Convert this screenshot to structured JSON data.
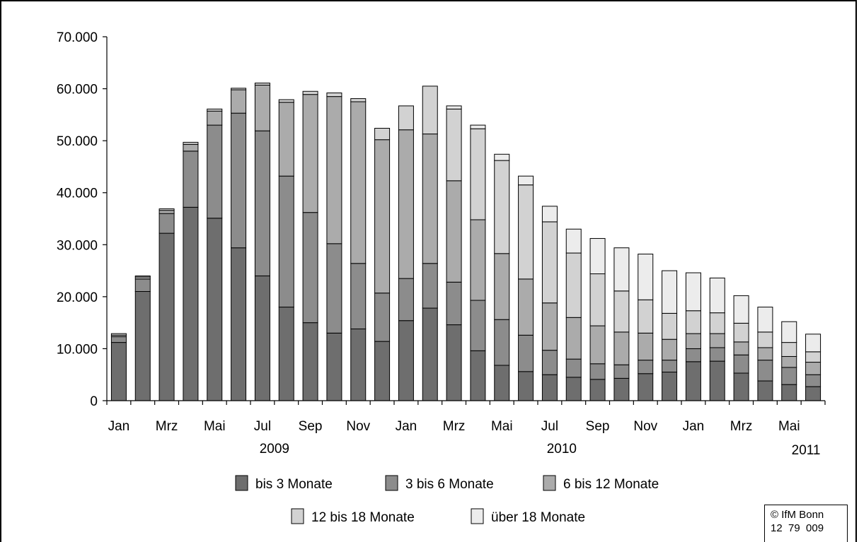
{
  "chart_data": {
    "type": "bar",
    "stacked": true,
    "x": [
      "Jan 2009",
      "Feb 2009",
      "Mrz 2009",
      "Apr 2009",
      "Mai 2009",
      "Jun 2009",
      "Jul 2009",
      "Aug 2009",
      "Sep 2009",
      "Okt 2009",
      "Nov 2009",
      "Dez 2009",
      "Jan 2010",
      "Feb 2010",
      "Mrz 2010",
      "Apr 2010",
      "Mai 2010",
      "Jun 2010",
      "Jul 2010",
      "Aug 2010",
      "Sep 2010",
      "Okt 2010",
      "Nov 2010",
      "Dez 2010",
      "Jan 2011",
      "Feb 2011",
      "Mrz 2011",
      "Apr 2011",
      "Mai 2011",
      "Jun 2011"
    ],
    "x_tick_labels": [
      "Jan",
      "",
      "Mrz",
      "",
      "Mai",
      "",
      "Jul",
      "",
      "Sep",
      "",
      "Nov",
      "",
      "Jan",
      "",
      "Mrz",
      "",
      "Mai",
      "",
      "Jul",
      "",
      "Sep",
      "",
      "Nov",
      "",
      "Jan",
      "",
      "Mrz",
      "",
      "Mai",
      ""
    ],
    "year_labels": [
      {
        "text": "2009",
        "index": 6.5
      },
      {
        "text": "2010",
        "index": 18.5
      },
      {
        "text": "2011",
        "index": 29
      }
    ],
    "series": [
      {
        "name": "bis 3 Monate",
        "color": "#6e6e6e",
        "values": [
          11200,
          21000,
          32200,
          37200,
          35100,
          29400,
          24000,
          18000,
          15000,
          13000,
          13800,
          11400,
          15400,
          17800,
          14600,
          9600,
          6800,
          5600,
          5000,
          4500,
          4100,
          4300,
          5200,
          5500,
          7500,
          7600,
          5300,
          3800,
          3100,
          2700
        ]
      },
      {
        "name": "3 bis 6 Monate",
        "color": "#8c8c8c",
        "values": [
          1100,
          2400,
          3800,
          10800,
          17900,
          25900,
          27900,
          25200,
          21200,
          17200,
          12600,
          9300,
          8100,
          8600,
          8200,
          9700,
          8800,
          7000,
          4700,
          3500,
          3000,
          2600,
          2600,
          2300,
          2500,
          2600,
          3500,
          4000,
          3300,
          2300
        ]
      },
      {
        "name": "6 bis 12 Monate",
        "color": "#ababab",
        "values": [
          300,
          400,
          600,
          1300,
          2700,
          4500,
          8800,
          14200,
          22700,
          28300,
          31100,
          29500,
          28600,
          24900,
          19500,
          15500,
          12700,
          10800,
          9100,
          8000,
          7300,
          6300,
          5200,
          4000,
          2900,
          2700,
          2500,
          2400,
          2100,
          2400
        ]
      },
      {
        "name": "12 bis 18 Monate",
        "color": "#d2d2d2",
        "values": [
          300,
          200,
          300,
          400,
          400,
          300,
          400,
          500,
          600,
          700,
          600,
          2200,
          4600,
          9200,
          13800,
          17500,
          17900,
          18100,
          15600,
          12400,
          10000,
          7900,
          6400,
          5000,
          4400,
          4000,
          3600,
          3000,
          2700,
          2000
        ]
      },
      {
        "name": "über 18 Monate",
        "color": "#ececec",
        "values": [
          0,
          0,
          0,
          0,
          0,
          0,
          0,
          0,
          0,
          0,
          0,
          0,
          0,
          0,
          600,
          700,
          1200,
          1700,
          3000,
          4600,
          6800,
          8300,
          8800,
          8200,
          7300,
          6700,
          5300,
          4800,
          4000,
          3400
        ]
      }
    ],
    "ylim": [
      0,
      70000
    ],
    "y_ticks": [
      0,
      10000,
      20000,
      30000,
      40000,
      50000,
      60000,
      70000
    ],
    "y_tick_labels": [
      "0",
      "10.000",
      "20.000",
      "30.000",
      "40.000",
      "50.000",
      "60.000",
      "70.000"
    ],
    "legend_position": "bottom",
    "grid": false
  },
  "credit": {
    "line1": "© IfM Bonn",
    "line2": "12  79  009"
  }
}
